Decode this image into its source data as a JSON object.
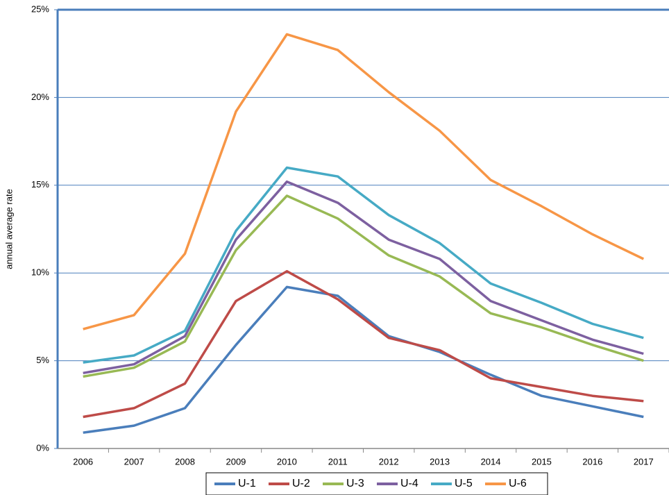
{
  "chart_data": {
    "type": "line",
    "y_label": "annual average rate",
    "categories": [
      "2006",
      "2007",
      "2008",
      "2009",
      "2010",
      "2011",
      "2012",
      "2013",
      "2014",
      "2015",
      "2016",
      "2017"
    ],
    "series": [
      {
        "name": "U-1",
        "color": "#4a7ebb",
        "values": [
          0.9,
          1.3,
          2.3,
          5.9,
          9.2,
          8.7,
          6.4,
          5.5,
          4.2,
          3.0,
          2.4,
          1.8
        ]
      },
      {
        "name": "U-2",
        "color": "#be4b48",
        "values": [
          1.8,
          2.3,
          3.7,
          8.4,
          10.1,
          8.5,
          6.3,
          5.6,
          4.0,
          3.5,
          3.0,
          2.7
        ]
      },
      {
        "name": "U-3",
        "color": "#98b954",
        "values": [
          4.1,
          4.6,
          6.1,
          11.3,
          14.4,
          13.1,
          11.0,
          9.8,
          7.7,
          6.9,
          5.9,
          5.0
        ]
      },
      {
        "name": "U-4",
        "color": "#7d60a0",
        "values": [
          4.3,
          4.8,
          6.4,
          11.9,
          15.2,
          14.0,
          11.9,
          10.8,
          8.4,
          7.3,
          6.2,
          5.4
        ]
      },
      {
        "name": "U-5",
        "color": "#46aac5",
        "values": [
          4.9,
          5.3,
          6.7,
          12.4,
          16.0,
          15.5,
          13.3,
          11.7,
          9.4,
          8.3,
          7.1,
          6.3
        ]
      },
      {
        "name": "U-6",
        "color": "#f79646",
        "values": [
          6.8,
          7.6,
          11.1,
          19.2,
          23.6,
          22.7,
          20.3,
          18.1,
          15.3,
          13.8,
          12.2,
          10.8
        ]
      }
    ],
    "ylim": [
      0,
      25
    ],
    "yticks": [
      {
        "value": 0,
        "label": "0%"
      },
      {
        "value": 5,
        "label": "5%"
      },
      {
        "value": 10,
        "label": "10%"
      },
      {
        "value": 15,
        "label": "15%"
      },
      {
        "value": 20,
        "label": "20%"
      },
      {
        "value": 25,
        "label": "25%"
      }
    ],
    "grid": true,
    "legend": "bottom"
  }
}
